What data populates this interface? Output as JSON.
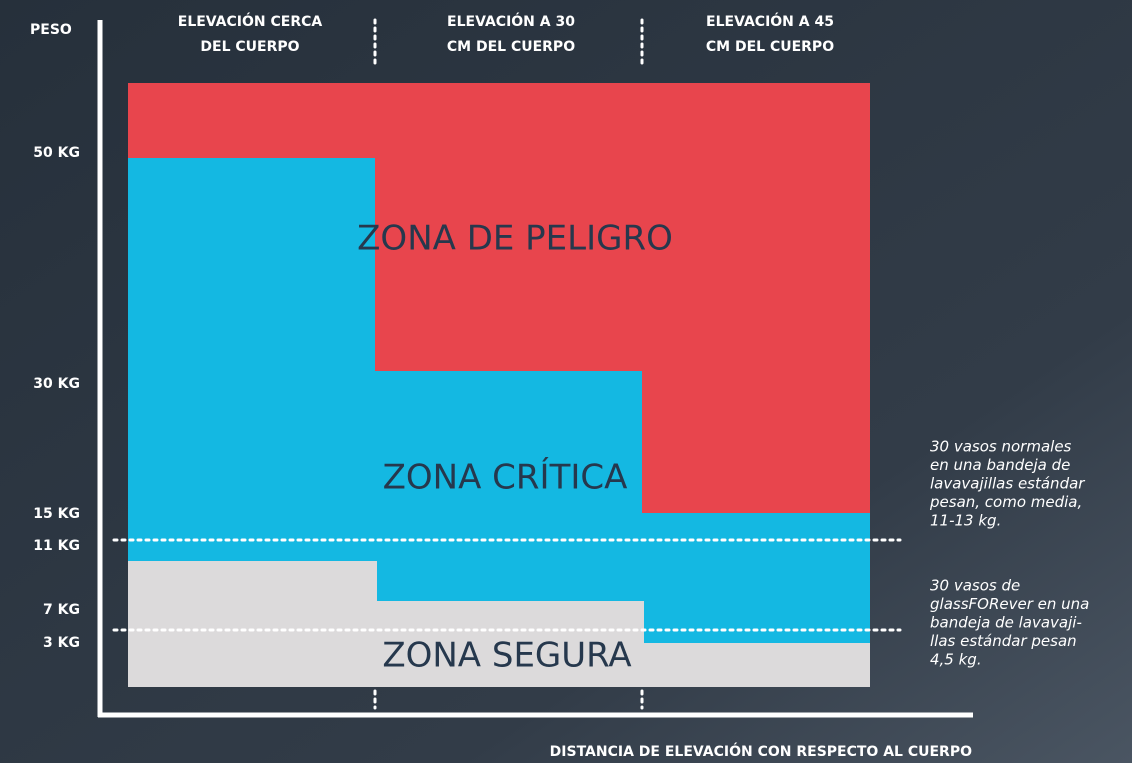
{
  "y_axis": {
    "title": "PESO",
    "ticks": [
      "50 KG",
      "30 KG",
      "15 KG",
      "11 KG",
      "7 KG",
      "3 KG"
    ]
  },
  "columns": [
    [
      "ELEVACIÓN CERCA",
      "DEL CUERPO"
    ],
    [
      "ELEVACIÓN A 30",
      "CM DEL CUERPO"
    ],
    [
      "ELEVACIÓN A 45",
      "CM DEL CUERPO"
    ]
  ],
  "zones": [
    "ZONA DE PELIGRO",
    "ZONA CRÍTICA",
    "ZONA SEGURA"
  ],
  "notes": [
    [
      "30 vasos normales",
      "en una bandeja de",
      "lavavajillas estándar",
      "pesan, como media,",
      "11-13 kg."
    ],
    [
      "30 vasos de",
      "glassFORever en una",
      "bandeja de lavavaji-",
      "llas estándar pesan",
      "4,5 kg."
    ]
  ],
  "x_axis": {
    "title": "DISTANCIA DE ELEVACIÓN CON RESPECTO AL CUERPO"
  }
}
